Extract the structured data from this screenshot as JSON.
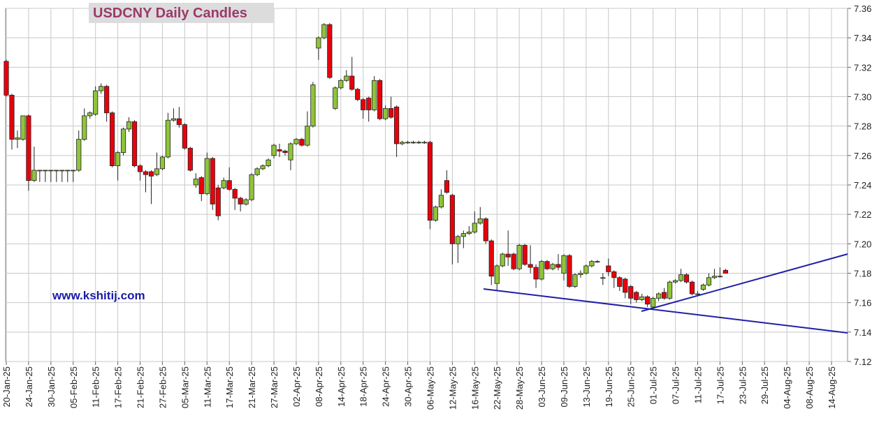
{
  "chart_data": {
    "type": "candlestick",
    "title": "USDCNY Daily Candles",
    "annotation": "www.kshitij.com",
    "up_color": "#8fc43a",
    "down_color": "#e8000b",
    "grid": true,
    "ylim": [
      7.12,
      7.36
    ],
    "yticks": [
      7.12,
      7.14,
      7.16,
      7.18,
      {
        "value": 7.2,
        "label": "7.20"
      },
      7.22,
      7.24,
      7.26,
      7.28,
      {
        "value": 7.3,
        "label": "7.30"
      },
      7.32,
      7.34,
      7.36
    ],
    "categories": [
      "20-Jan-25",
      null,
      null,
      null,
      "24-Jan-25",
      null,
      null,
      null,
      "30-Jan-25",
      null,
      null,
      null,
      "05-Feb-25",
      null,
      null,
      null,
      "11-Feb-25",
      null,
      null,
      null,
      "17-Feb-25",
      null,
      null,
      null,
      "21-Feb-25",
      null,
      null,
      null,
      "27-Feb-25",
      null,
      null,
      null,
      "05-Mar-25",
      null,
      null,
      null,
      "11-Mar-25",
      null,
      null,
      null,
      "17-Mar-25",
      null,
      null,
      null,
      "21-Mar-25",
      null,
      null,
      null,
      "27-Mar-25",
      null,
      null,
      null,
      "02-Apr-25",
      null,
      null,
      null,
      "08-Apr-25",
      null,
      null,
      null,
      "14-Apr-25",
      null,
      null,
      null,
      "18-Apr-25",
      null,
      null,
      null,
      "24-Apr-25",
      null,
      null,
      null,
      "30-Apr-25",
      null,
      null,
      null,
      "06-May-25",
      null,
      null,
      null,
      "12-May-25",
      null,
      null,
      null,
      "16-May-25",
      null,
      null,
      null,
      "22-May-25",
      null,
      null,
      null,
      "28-May-25",
      null,
      null,
      null,
      "03-Jun-25",
      null,
      null,
      null,
      "09-Jun-25",
      null,
      null,
      null,
      "13-Jun-25",
      null,
      null,
      null,
      "19-Jun-25",
      null,
      null,
      null,
      "25-Jun-25",
      null,
      null,
      null,
      "01-Jul-25",
      null,
      null,
      null,
      "07-Jul-25",
      null,
      null,
      null,
      "11-Jul-25",
      null,
      null,
      null,
      "17-Jul-25",
      null,
      null,
      null,
      "23-Jul-25",
      null,
      null,
      null,
      "29-Jul-25",
      null,
      null,
      null,
      "04-Aug-25",
      null,
      null,
      null,
      "08-Aug-25",
      null,
      null,
      null,
      "14-Aug-25"
    ],
    "open": [
      7.324,
      7.301,
      7.271,
      7.271,
      7.287,
      7.243,
      7.25,
      7.25,
      7.25,
      7.25,
      7.25,
      7.25,
      7.25,
      7.25,
      7.271,
      7.287,
      7.288,
      7.304,
      7.307,
      7.289,
      7.253,
      7.262,
      7.278,
      7.283,
      7.253,
      7.249,
      7.249,
      7.247,
      7.251,
      7.259,
      7.284,
      7.285,
      7.281,
      7.265,
      7.24,
      7.245,
      7.234,
      7.258,
      7.238,
      7.238,
      7.243,
      7.237,
      7.231,
      7.227,
      7.23,
      7.247,
      7.251,
      7.253,
      7.26,
      7.264,
      7.263,
      7.257,
      7.268,
      7.271,
      7.267,
      7.28,
      7.333,
      7.34,
      7.349,
      7.292,
      7.306,
      7.311,
      7.314,
      7.305,
      7.298,
      7.299,
      7.291,
      7.311,
      7.285,
      7.292,
      7.293,
      7.268,
      7.269,
      7.269,
      7.269,
      7.269,
      7.269,
      7.216,
      7.225,
      7.243,
      7.233,
      7.2,
      7.205,
      7.207,
      7.208,
      7.214,
      7.217,
      7.202,
      7.173,
      7.185,
      7.193,
      7.193,
      7.183,
      7.199,
      7.186,
      7.184,
      7.176,
      7.188,
      7.183,
      7.186,
      7.18,
      7.192,
      7.171,
      7.179,
      7.18,
      7.185,
      7.188,
      7.177,
      7.185,
      7.181,
      7.177,
      7.176,
      7.171,
      7.167,
      7.162,
      7.164,
      7.157,
      7.163,
      7.167,
      7.163,
      7.174,
      7.175,
      7.179,
      7.174,
      7.166,
      7.169,
      7.172,
      7.177,
      7.178,
      7.182,
      null,
      null,
      null,
      null,
      null,
      null,
      null,
      null,
      null,
      null,
      null,
      null,
      null,
      null,
      null,
      null,
      null,
      null,
      null
    ],
    "high": [
      7.325,
      7.302,
      7.277,
      7.287,
      7.288,
      7.266,
      7.25,
      7.25,
      7.25,
      7.25,
      7.25,
      7.25,
      7.25,
      7.277,
      7.292,
      7.29,
      7.307,
      7.309,
      7.308,
      7.29,
      7.263,
      7.279,
      7.286,
      7.284,
      7.254,
      7.25,
      7.25,
      7.262,
      7.26,
      7.289,
      7.292,
      7.293,
      7.282,
      7.266,
      7.248,
      7.246,
      7.262,
      7.259,
      7.24,
      7.245,
      7.252,
      7.238,
      7.232,
      7.231,
      7.248,
      7.252,
      7.254,
      7.258,
      7.268,
      7.268,
      7.264,
      7.269,
      7.272,
      7.272,
      7.29,
      7.31,
      7.341,
      7.35,
      7.35,
      7.307,
      7.312,
      7.318,
      7.327,
      7.306,
      7.299,
      7.3,
      7.314,
      7.312,
      7.294,
      7.3,
      7.294,
      7.27,
      7.27,
      7.27,
      7.27,
      7.27,
      7.27,
      7.226,
      7.237,
      7.25,
      7.234,
      7.206,
      7.209,
      7.212,
      7.222,
      7.225,
      7.218,
      7.203,
      7.186,
      7.194,
      7.209,
      7.194,
      7.2,
      7.2,
      7.199,
      7.186,
      7.189,
      7.189,
      7.187,
      7.193,
      7.193,
      7.193,
      7.18,
      7.182,
      7.186,
      7.189,
      7.189,
      7.18,
      7.19,
      7.182,
      7.178,
      7.177,
      7.172,
      7.168,
      7.166,
      7.165,
      7.164,
      7.167,
      7.17,
      7.175,
      7.176,
      7.183,
      7.18,
      7.175,
      7.168,
      7.173,
      7.18,
      7.183,
      7.184,
      7.183,
      null,
      null,
      null,
      null,
      null,
      null,
      null,
      null,
      null,
      null,
      null,
      null,
      null,
      null,
      null,
      null,
      null,
      null,
      null
    ],
    "low": [
      7.3,
      7.264,
      7.265,
      7.27,
      7.236,
      7.242,
      7.242,
      7.242,
      7.242,
      7.242,
      7.242,
      7.242,
      7.242,
      7.249,
      7.27,
      7.285,
      7.287,
      7.302,
      7.283,
      7.252,
      7.243,
      7.26,
      7.276,
      7.252,
      7.243,
      7.235,
      7.227,
      7.246,
      7.25,
      7.258,
      7.283,
      7.279,
      7.264,
      7.249,
      7.238,
      7.229,
      7.233,
      7.223,
      7.216,
      7.237,
      7.236,
      7.223,
      7.222,
      7.226,
      7.229,
      7.246,
      7.25,
      7.252,
      7.258,
      7.259,
      7.26,
      7.25,
      7.267,
      7.266,
      7.266,
      7.279,
      7.325,
      7.339,
      7.312,
      7.291,
      7.305,
      7.31,
      7.304,
      7.297,
      7.285,
      7.283,
      7.29,
      7.284,
      7.284,
      7.285,
      7.259,
      7.267,
      7.268,
      7.268,
      7.268,
      7.268,
      7.21,
      7.215,
      7.224,
      7.234,
      7.186,
      7.187,
      7.197,
      7.206,
      7.207,
      7.213,
      7.2,
      7.172,
      7.168,
      7.184,
      7.185,
      7.182,
      7.182,
      7.185,
      7.18,
      7.17,
      7.175,
      7.182,
      7.182,
      7.182,
      7.175,
      7.17,
      7.17,
      7.177,
      7.179,
      7.184,
      7.187,
      7.172,
      7.178,
      7.17,
      7.168,
      7.163,
      7.159,
      7.16,
      7.161,
      7.157,
      7.155,
      7.161,
      7.162,
      7.162,
      7.173,
      7.174,
      7.173,
      7.165,
      7.165,
      7.168,
      7.171,
      7.176,
      7.177,
      7.18,
      null,
      null,
      null,
      null,
      null,
      null,
      null,
      null,
      null,
      null,
      null,
      null,
      null,
      null,
      null,
      null,
      null,
      null,
      null
    ],
    "close": [
      7.301,
      7.271,
      7.272,
      7.287,
      7.243,
      7.25,
      7.25,
      7.25,
      7.25,
      7.25,
      7.25,
      7.25,
      7.25,
      7.271,
      7.287,
      7.289,
      7.304,
      7.307,
      7.289,
      7.253,
      7.262,
      7.278,
      7.283,
      7.253,
      7.249,
      7.247,
      7.246,
      7.251,
      7.259,
      7.284,
      7.285,
      7.281,
      7.265,
      7.25,
      7.244,
      7.234,
      7.258,
      7.227,
      7.219,
      7.243,
      7.237,
      7.231,
      7.227,
      7.23,
      7.247,
      7.251,
      7.253,
      7.257,
      7.267,
      7.263,
      7.262,
      7.268,
      7.271,
      7.267,
      7.28,
      7.308,
      7.34,
      7.349,
      7.313,
      7.306,
      7.311,
      7.314,
      7.305,
      7.298,
      7.291,
      7.291,
      7.311,
      7.285,
      7.292,
      7.286,
      7.268,
      7.269,
      7.269,
      7.269,
      7.269,
      7.269,
      7.216,
      7.225,
      7.233,
      7.235,
      7.2,
      7.205,
      7.207,
      7.208,
      7.214,
      7.217,
      7.202,
      7.178,
      7.185,
      7.193,
      7.191,
      7.183,
      7.199,
      7.186,
      7.184,
      7.176,
      7.188,
      7.183,
      7.186,
      7.184,
      7.192,
      7.171,
      7.179,
      7.18,
      7.185,
      7.188,
      7.188,
      7.177,
      7.181,
      7.177,
      7.171,
      7.167,
      7.163,
      7.162,
      7.164,
      7.159,
      7.163,
      7.166,
      7.163,
      7.174,
      7.175,
      7.179,
      7.174,
      7.166,
      7.166,
      7.172,
      7.177,
      7.178,
      7.178,
      7.18,
      null,
      null,
      null,
      null,
      null,
      null,
      null,
      null,
      null,
      null,
      null,
      null,
      null,
      null,
      null,
      null,
      null,
      null,
      null
    ]
  }
}
